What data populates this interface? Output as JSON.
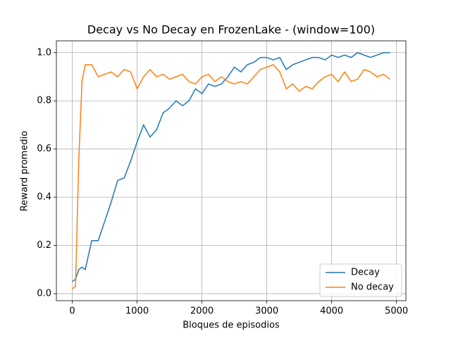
{
  "chart_data": {
    "type": "line",
    "title": "Decay vs No Decay en FrozenLake - (window=100)",
    "x_label": "Bloques de episodios",
    "y_label": "Reward promedio",
    "x": [
      0,
      50,
      100,
      150,
      200,
      300,
      400,
      500,
      600,
      700,
      800,
      900,
      1000,
      1100,
      1200,
      1300,
      1400,
      1500,
      1600,
      1700,
      1800,
      1900,
      2000,
      2100,
      2200,
      2300,
      2400,
      2500,
      2600,
      2700,
      2800,
      2900,
      3000,
      3100,
      3200,
      3300,
      3400,
      3500,
      3600,
      3700,
      3800,
      3900,
      4000,
      4100,
      4200,
      4300,
      4400,
      4500,
      4600,
      4700,
      4800,
      4900
    ],
    "series": [
      {
        "name": "Decay",
        "color": "#1f77b4",
        "values": [
          0.05,
          0.06,
          0.1,
          0.11,
          0.1,
          0.22,
          0.22,
          0.3,
          0.38,
          0.47,
          0.48,
          0.55,
          0.63,
          0.7,
          0.65,
          0.68,
          0.75,
          0.77,
          0.8,
          0.78,
          0.8,
          0.85,
          0.83,
          0.87,
          0.86,
          0.87,
          0.9,
          0.94,
          0.92,
          0.95,
          0.96,
          0.98,
          0.98,
          0.97,
          0.98,
          0.93,
          0.95,
          0.96,
          0.97,
          0.98,
          0.98,
          0.97,
          0.99,
          0.98,
          0.99,
          0.98,
          1.0,
          0.99,
          0.98,
          0.99,
          1.0,
          1.0
        ]
      },
      {
        "name": "No decay",
        "color": "#ff7f0e",
        "values": [
          0.02,
          0.03,
          0.55,
          0.88,
          0.95,
          0.95,
          0.9,
          0.91,
          0.92,
          0.9,
          0.93,
          0.92,
          0.85,
          0.9,
          0.93,
          0.9,
          0.91,
          0.89,
          0.9,
          0.91,
          0.88,
          0.87,
          0.9,
          0.91,
          0.88,
          0.9,
          0.88,
          0.87,
          0.88,
          0.87,
          0.9,
          0.93,
          0.94,
          0.95,
          0.92,
          0.85,
          0.87,
          0.84,
          0.86,
          0.85,
          0.88,
          0.9,
          0.91,
          0.88,
          0.92,
          0.88,
          0.89,
          0.93,
          0.92,
          0.9,
          0.91,
          0.89
        ]
      }
    ],
    "xlim": [
      -245,
      5145
    ],
    "ylim": [
      -0.029,
      1.049
    ],
    "xticks": [
      0,
      1000,
      2000,
      3000,
      4000,
      5000
    ],
    "yticks": [
      {
        "value": 0,
        "label": "0.0"
      },
      0.2,
      0.4,
      0.6,
      0.8,
      {
        "value": 1,
        "label": "1.0"
      }
    ],
    "grid": true,
    "legend": "lower right"
  }
}
